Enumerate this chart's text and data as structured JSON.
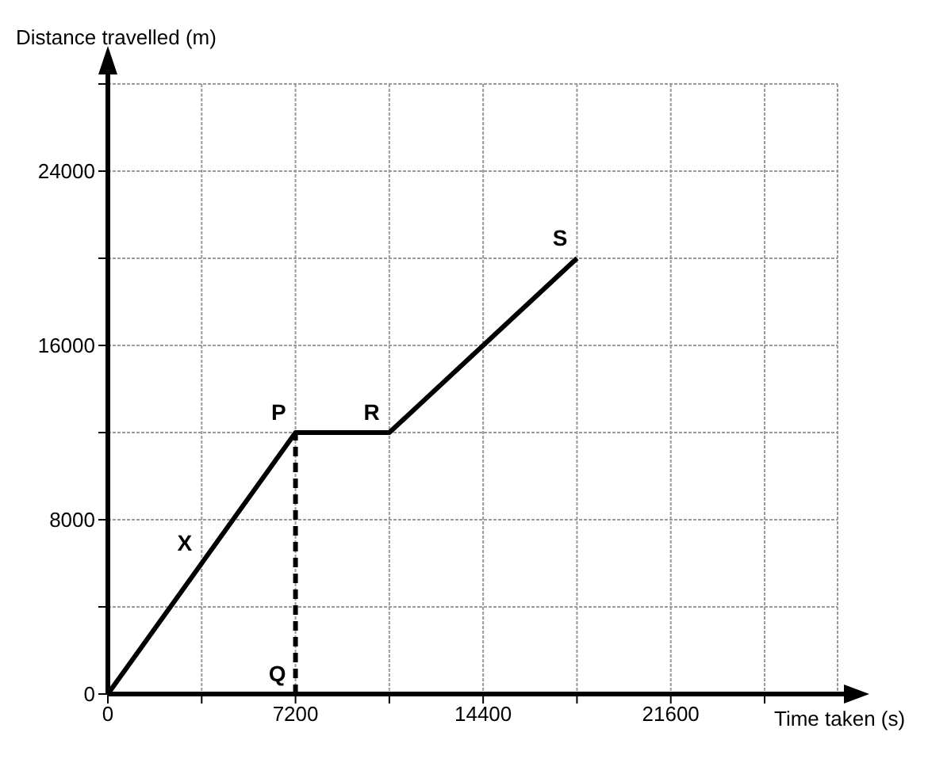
{
  "chart_data": {
    "type": "line",
    "xlabel": "Time taken (s)",
    "ylabel": "Distance travelled (m)",
    "series": [
      {
        "color": "#000000",
        "x": [
          0,
          7200,
          10800,
          18000
        ],
        "values": [
          0,
          12000,
          12000,
          20000
        ],
        "line_style": "solid"
      },
      {
        "color": "#000000",
        "x": [
          7200,
          7200
        ],
        "values": [
          0,
          12000
        ],
        "line_style": "dashed"
      }
    ],
    "xlim": [
      0,
      28000
    ],
    "ylim": [
      0,
      28000
    ],
    "xticks": [
      0,
      {
        "value": 3600,
        "label": null
      },
      7200,
      {
        "value": 10800,
        "label": null
      },
      14400,
      {
        "value": 18000,
        "label": null
      },
      21600,
      {
        "value": 25200,
        "label": null
      }
    ],
    "yticks": [
      0,
      {
        "value": 4000,
        "label": null
      },
      8000,
      {
        "value": 12000,
        "label": null
      },
      16000,
      {
        "value": 20000,
        "label": null
      },
      24000,
      {
        "value": 28000,
        "label": null
      }
    ],
    "grid": true,
    "marker": "none",
    "annotations": [
      {
        "text": "X",
        "x": 3600,
        "y": 6000
      },
      {
        "text": "P",
        "x": 7200,
        "y": 12000
      },
      {
        "text": "R",
        "x": 10800,
        "y": 12000
      },
      {
        "text": "S",
        "x": 18000,
        "y": 20000
      },
      {
        "text": "Q",
        "x": 7200,
        "y": 0
      }
    ]
  }
}
